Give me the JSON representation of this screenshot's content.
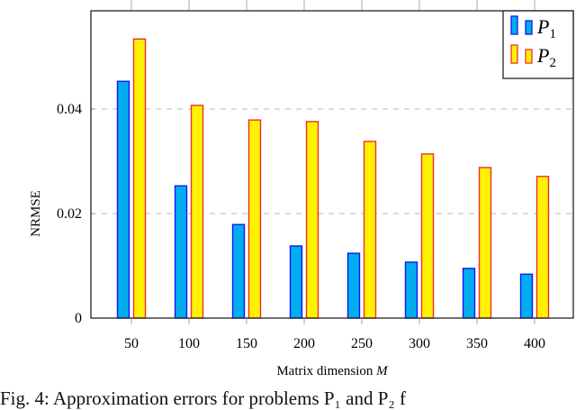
{
  "chart_data": {
    "type": "bar",
    "title": "",
    "xlabel": "Matrix dimension M",
    "xlabel_text": "Matrix dimension ",
    "xlabel_var": "M",
    "ylabel": "NRMSE",
    "categories": [
      "50",
      "100",
      "150",
      "200",
      "250",
      "300",
      "350",
      "400"
    ],
    "series": [
      {
        "name": "P1",
        "sub": "1",
        "fill": "#00AEEF",
        "stroke": "#1515F0",
        "values": [
          0.0453,
          0.0253,
          0.0179,
          0.0138,
          0.0124,
          0.0107,
          0.0095,
          0.0084
        ]
      },
      {
        "name": "P2",
        "sub": "2",
        "fill": "#FFF200",
        "stroke": "#F02E2E",
        "values": [
          0.0534,
          0.0407,
          0.0379,
          0.0376,
          0.0338,
          0.0314,
          0.0288,
          0.0271
        ]
      }
    ],
    "yticks": [
      {
        "value": 0,
        "label": "0"
      },
      {
        "value": 0.02,
        "label": "0.02"
      },
      {
        "value": 0.04,
        "label": "0.04"
      }
    ],
    "ylim": [
      0,
      0.0588
    ],
    "grid": "horizontal dashed at y ticks",
    "legend_position": "top-right inside"
  },
  "caption": "Fig. 4: Approximation errors for problems P₁ and P₂ f"
}
